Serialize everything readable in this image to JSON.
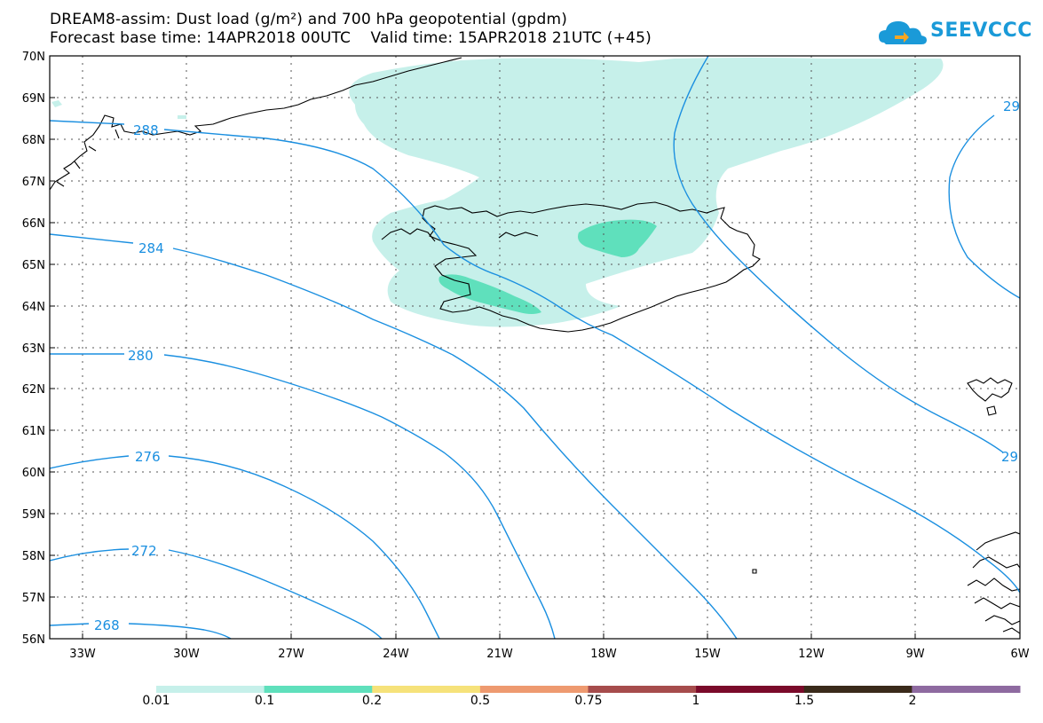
{
  "title": {
    "line1": "DREAM8-assim: Dust load (g/m²) and 700 hPa geopotential (gpdm)",
    "line2": "Forecast base time: 14APR2018 00UTC    Valid time: 15APR2018 21UTC (+45)"
  },
  "logo": {
    "text": "SEEVCCC",
    "icon": "cloud-icon"
  },
  "map": {
    "lat_labels": [
      "70N",
      "69N",
      "68N",
      "67N",
      "66N",
      "65N",
      "64N",
      "63N",
      "62N",
      "61N",
      "60N",
      "59N",
      "58N",
      "57N",
      "56N"
    ],
    "lon_labels": [
      "33W",
      "30W",
      "27W",
      "24W",
      "21W",
      "18W",
      "15W",
      "12W",
      "9W",
      "6W"
    ],
    "contour_labels": [
      "288",
      "284",
      "280",
      "276",
      "272",
      "268",
      "29",
      "29"
    ],
    "contour_color": "#1a8fe0",
    "grid": "dotted"
  },
  "colorbar": {
    "labels": [
      "0.01",
      "0.1",
      "0.2",
      "0.5",
      "0.75",
      "1",
      "1.5",
      "2"
    ],
    "colors": [
      "#c6f0ea",
      "#5fe0bc",
      "#f6e27a",
      "#ee9a70",
      "#a64c4c",
      "#7a0a2a",
      "#3a2a1a",
      "#8e6aa0"
    ]
  }
}
